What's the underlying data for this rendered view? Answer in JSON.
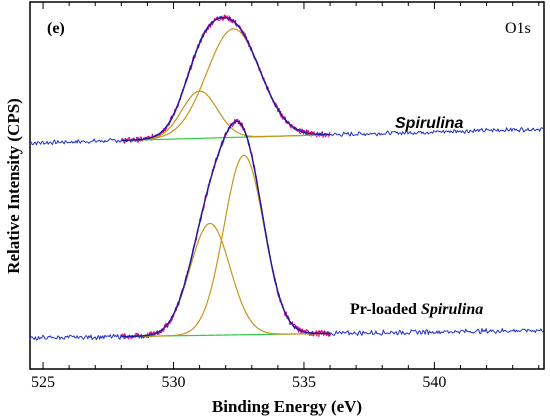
{
  "chart_data": {
    "type": "line",
    "panel_label": "(e)",
    "core_level_label": "O1s",
    "xlabel": "Binding Energy (eV)",
    "ylabel": "Relative Intensity (CPS)",
    "xlim": [
      524.5,
      544.2
    ],
    "xticks": [
      525,
      530,
      535,
      540
    ],
    "y_ticks_shown": false,
    "grid": false,
    "spectra": [
      {
        "sample_prefix": "",
        "sample_name": "Spirulina",
        "baseline_start": 0.0,
        "baseline_end": 0.12,
        "peaks": [
          {
            "center": 531.0,
            "fwhm": 1.6,
            "height": 0.4
          },
          {
            "center": 532.3,
            "fwhm": 2.4,
            "height": 0.92
          }
        ]
      },
      {
        "sample_prefix": "Pr-loaded ",
        "sample_name": "Spirulina",
        "baseline_start": 0.0,
        "baseline_end": 0.06,
        "peaks": [
          {
            "center": 531.4,
            "fwhm": 1.8,
            "height": 0.86
          },
          {
            "center": 532.7,
            "fwhm": 1.8,
            "height": 1.38
          }
        ]
      }
    ],
    "colors": {
      "raw": "#e0007a",
      "envelope": "#1a1aa6",
      "component": "#c8951c",
      "background": "#2ecc40",
      "tail": "#2233cc"
    }
  }
}
